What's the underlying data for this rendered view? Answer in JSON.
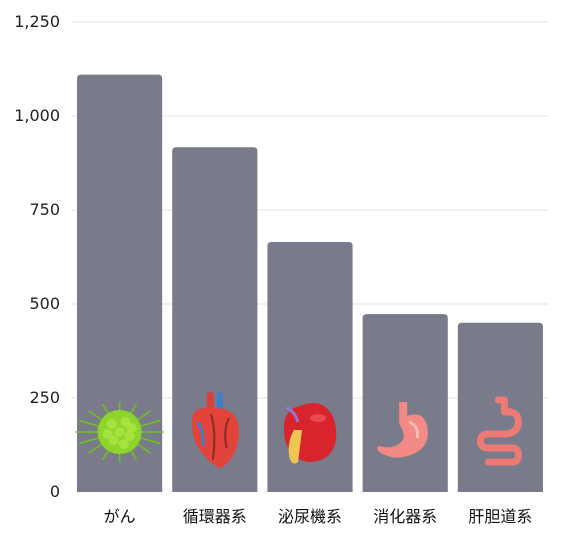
{
  "chart_data": {
    "type": "bar",
    "categories": [
      "がん",
      "循環器系",
      "泌尿機系",
      "消化器系",
      "肝胆道系"
    ],
    "values": [
      1110,
      917,
      665,
      473,
      450
    ],
    "yticks": [
      0,
      250,
      500,
      750,
      1000,
      1250
    ],
    "ytick_labels": [
      "0",
      "250",
      "500",
      "750",
      "1,000",
      "1,250"
    ],
    "ylim": [
      0,
      1250
    ],
    "grid": true,
    "title": "",
    "xlabel": "",
    "ylabel": "",
    "bar_color": "#7a7b8a",
    "icons": [
      "virus-icon",
      "heart-icon",
      "kidney-icon",
      "stomach-icon",
      "intestine-icon"
    ]
  }
}
